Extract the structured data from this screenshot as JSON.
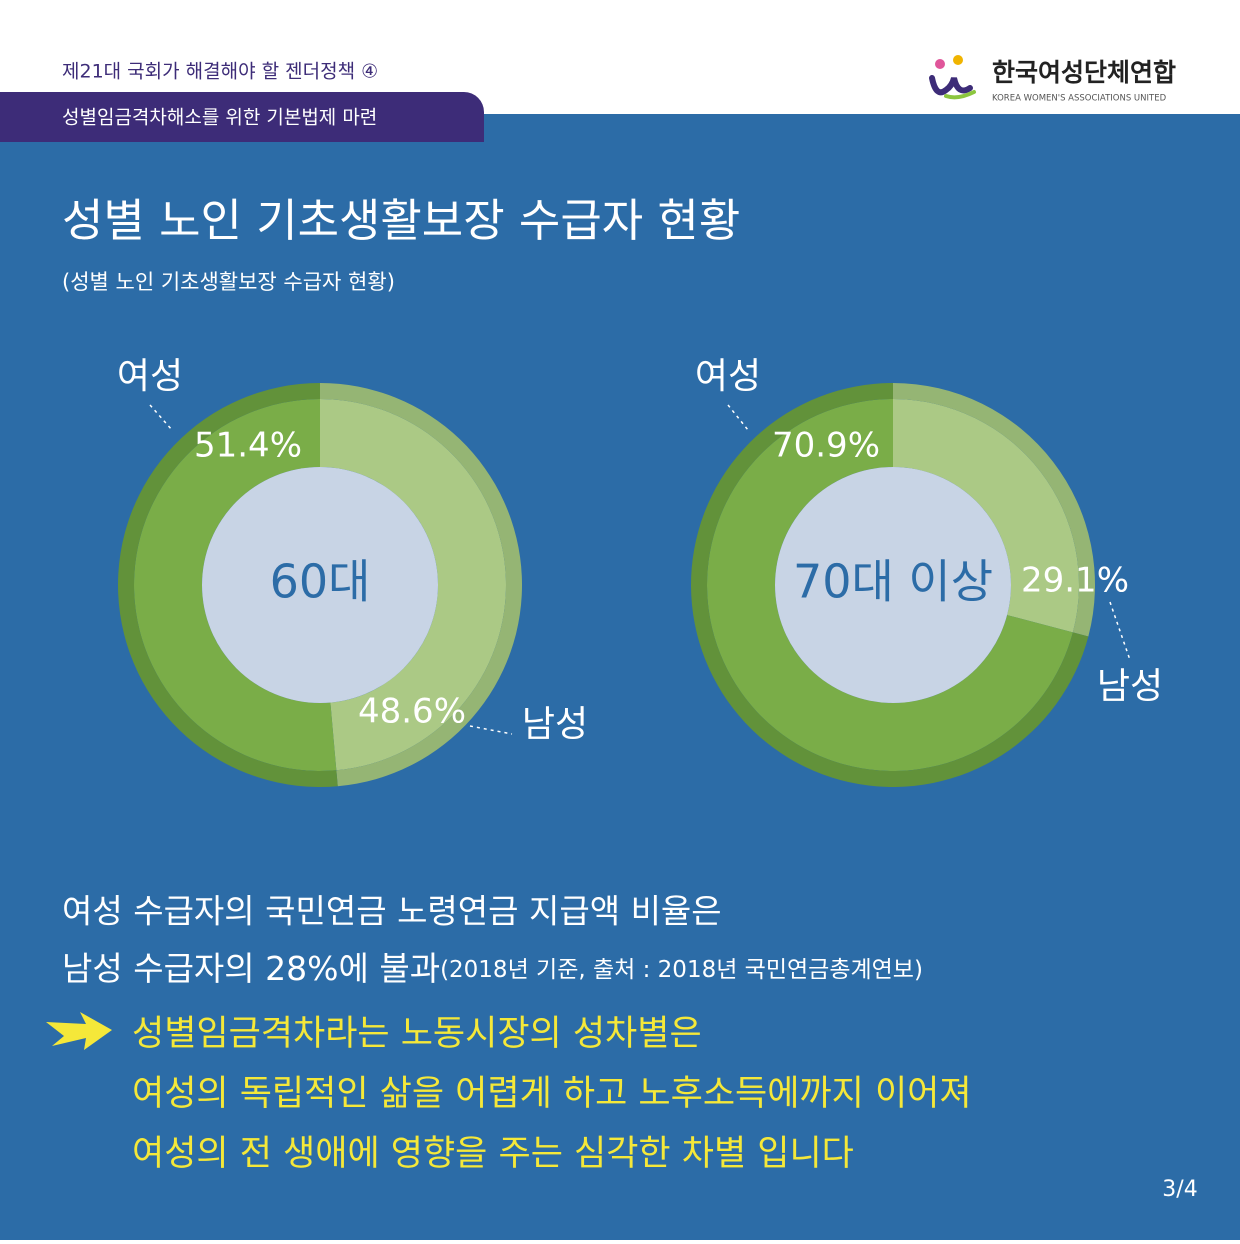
{
  "header": {
    "series_title": "제21대 국회가 해결해야 할 젠더정책 ④",
    "subtitle": "성별임금격차해소를 위한 기본법제 마련",
    "logo_name": "한국여성단체연합",
    "logo_english": "KOREA WOMEN'S ASSOCIATIONS UNITED"
  },
  "heading": {
    "title": "성별 노인 기초생활보장 수급자 현황",
    "subtitle": "(성별 노인 기초생활보장 수급자 현황)"
  },
  "chart_data": [
    {
      "type": "donut",
      "center_label": "60대",
      "categories": [
        "여성",
        "남성"
      ],
      "values": [
        51.4,
        48.6
      ],
      "value_labels": [
        "51.4%",
        "48.6%"
      ],
      "colors": [
        "#7aad48",
        "#abc985"
      ],
      "edge_colors": [
        "#62923a",
        "#95b574"
      ]
    },
    {
      "type": "donut",
      "center_label": "70대 이상",
      "categories": [
        "여성",
        "남성"
      ],
      "values": [
        70.9,
        29.1
      ],
      "value_labels": [
        "70.9%",
        "29.1%"
      ],
      "colors": [
        "#7aad48",
        "#abc985"
      ],
      "edge_colors": [
        "#62923a",
        "#95b574"
      ]
    }
  ],
  "body": {
    "line1": "여성 수급자의 국민연금 노령연금 지급액 비율은",
    "line2": "남성 수급자의 28%에 불과",
    "line2_note": "(2018년 기준, 출처 : 2018년 국민연금총계연보)",
    "highlight": [
      "성별임금격차라는 노동시장의 성차별은",
      "여성의 독립적인 삶을 어렵게 하고 노후소득에까지 이어져",
      "여성의 전 생애에 영향을 주는 심각한 차별 입니다"
    ]
  },
  "page": "3/4"
}
